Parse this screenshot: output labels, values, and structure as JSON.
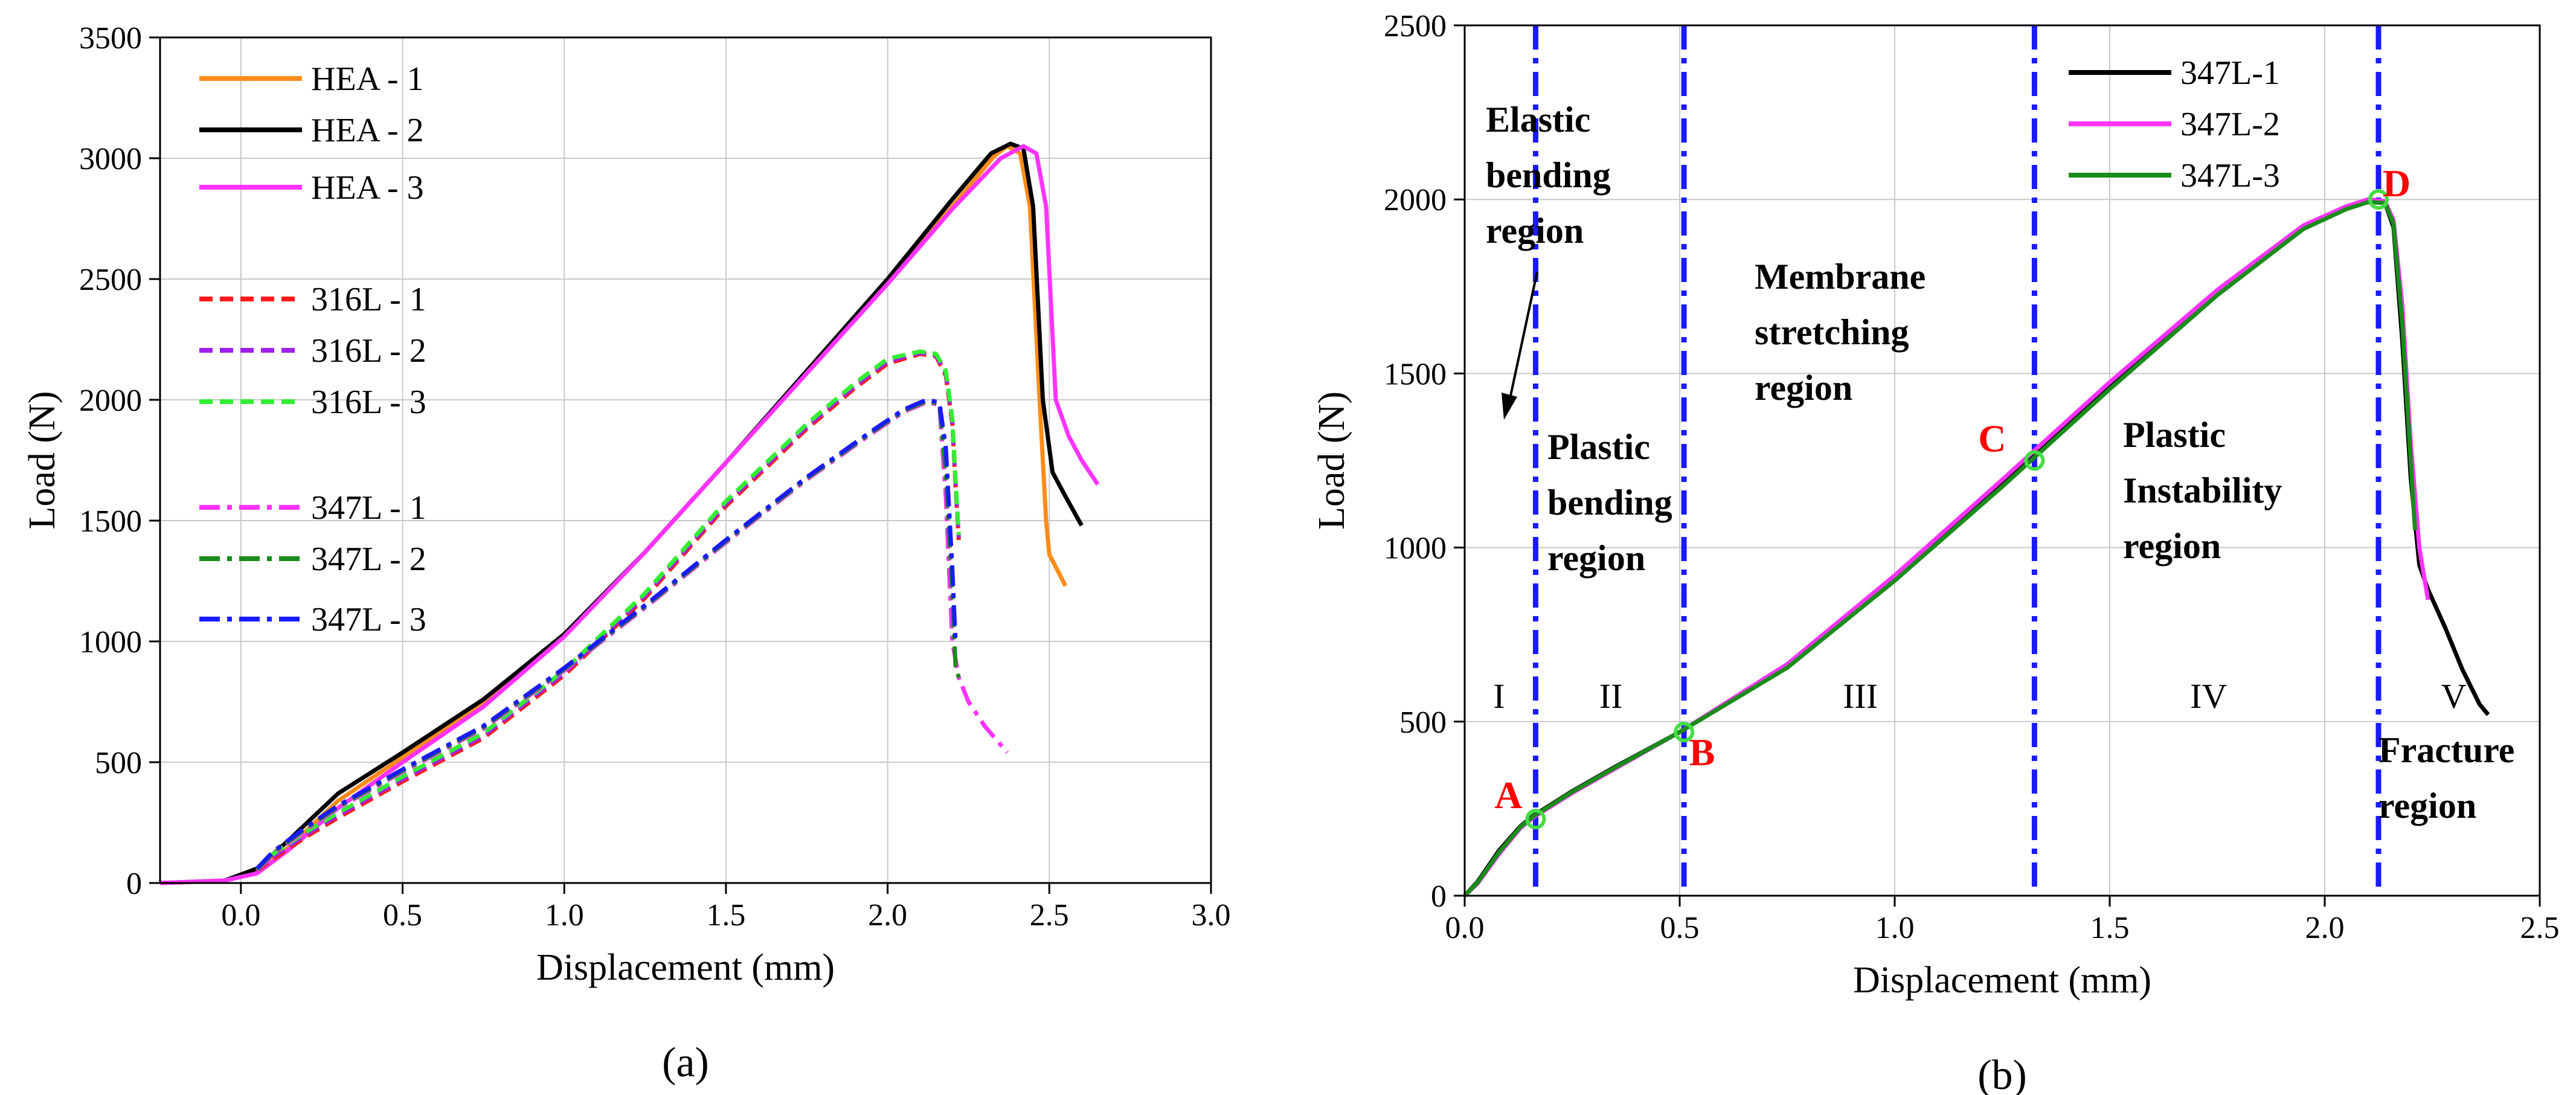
{
  "chart_data": [
    {
      "type": "line",
      "panel_label": "(a)",
      "xlabel": "Displacement (mm)",
      "ylabel": "Load (N)",
      "xlim": [
        -0.25,
        3.0
      ],
      "ylim": [
        0,
        3500
      ],
      "xticks": [
        0.0,
        0.5,
        1.0,
        1.5,
        2.0,
        2.5,
        3.0
      ],
      "xtick_labels": [
        "0.0",
        "0.5",
        "1.0",
        "1.5",
        "2.0",
        "2.5",
        "3.0"
      ],
      "yticks": [
        0,
        500,
        1000,
        1500,
        2000,
        2500,
        3000,
        3500
      ],
      "ytick_labels": [
        "0",
        "500",
        "1000",
        "1500",
        "2000",
        "2500",
        "3000",
        "3500"
      ],
      "grid": true,
      "legend_position": "top-left",
      "series": [
        {
          "name": "HEA - 1",
          "color": "#ff8c1a",
          "dash": "solid",
          "x": [
            -0.25,
            -0.05,
            0.05,
            0.15,
            0.3,
            0.5,
            0.75,
            1.0,
            1.25,
            1.5,
            1.75,
            2.0,
            2.2,
            2.33,
            2.37,
            2.41,
            2.44,
            2.47,
            2.49,
            2.5,
            2.55
          ],
          "y": [
            0,
            10,
            50,
            150,
            340,
            520,
            740,
            1020,
            1370,
            1740,
            2110,
            2490,
            2800,
            3010,
            3050,
            3020,
            2800,
            2000,
            1500,
            1360,
            1230
          ]
        },
        {
          "name": "HEA - 2",
          "color": "#000000",
          "dash": "solid",
          "x": [
            -0.25,
            -0.05,
            0.05,
            0.15,
            0.3,
            0.5,
            0.75,
            1.0,
            1.25,
            1.5,
            1.75,
            2.0,
            2.2,
            2.32,
            2.38,
            2.42,
            2.45,
            2.48,
            2.51,
            2.55,
            2.6
          ],
          "y": [
            0,
            10,
            60,
            180,
            370,
            540,
            760,
            1030,
            1370,
            1740,
            2120,
            2500,
            2830,
            3020,
            3060,
            3040,
            2800,
            2000,
            1700,
            1600,
            1480
          ]
        },
        {
          "name": "HEA - 3",
          "color": "#ff33ff",
          "dash": "solid",
          "x": [
            -0.25,
            -0.05,
            0.05,
            0.15,
            0.3,
            0.5,
            0.75,
            1.0,
            1.25,
            1.5,
            1.75,
            2.0,
            2.2,
            2.35,
            2.42,
            2.46,
            2.49,
            2.52,
            2.56,
            2.6,
            2.65
          ],
          "y": [
            0,
            10,
            40,
            140,
            310,
            500,
            730,
            1020,
            1370,
            1740,
            2110,
            2480,
            2790,
            3000,
            3050,
            3020,
            2800,
            2000,
            1850,
            1750,
            1650
          ]
        },
        {
          "name": "316L - 1",
          "color": "#ff1a1a",
          "dash": "dashed",
          "x": [
            0.05,
            0.1,
            0.2,
            0.3,
            0.5,
            0.75,
            1.0,
            1.25,
            1.5,
            1.75,
            1.9,
            2.0,
            2.1,
            2.15,
            2.18,
            2.2,
            2.21,
            2.22
          ],
          "y": [
            50,
            100,
            190,
            270,
            420,
            600,
            860,
            1180,
            1560,
            1880,
            2050,
            2150,
            2190,
            2180,
            2100,
            1900,
            1650,
            1420
          ]
        },
        {
          "name": "316L - 2",
          "color": "#a020f0",
          "dash": "dashed",
          "x": [
            0.05,
            0.1,
            0.2,
            0.3,
            0.5,
            0.75,
            1.0,
            1.25,
            1.5,
            1.75,
            1.9,
            2.0,
            2.1,
            2.15,
            2.18,
            2.2,
            2.21,
            2.22
          ],
          "y": [
            55,
            110,
            200,
            280,
            430,
            610,
            870,
            1190,
            1570,
            1890,
            2060,
            2160,
            2195,
            2185,
            2110,
            1910,
            1660,
            1430
          ]
        },
        {
          "name": "316L - 3",
          "color": "#33ee33",
          "dash": "dashed",
          "x": [
            0.05,
            0.1,
            0.2,
            0.3,
            0.5,
            0.75,
            1.0,
            1.25,
            1.5,
            1.75,
            1.9,
            2.0,
            2.1,
            2.15,
            2.18,
            2.2,
            2.21,
            2.22
          ],
          "y": [
            60,
            120,
            210,
            290,
            440,
            620,
            880,
            1200,
            1580,
            1900,
            2070,
            2170,
            2200,
            2190,
            2120,
            1920,
            1670,
            1440
          ]
        },
        {
          "name": "347L - 1",
          "color": "#ff33ff",
          "dash": "dashdot",
          "x": [
            0.05,
            0.1,
            0.2,
            0.3,
            0.5,
            0.75,
            1.0,
            1.25,
            1.5,
            1.75,
            1.95,
            2.05,
            2.12,
            2.16,
            2.18,
            2.2,
            2.22,
            2.25,
            2.3,
            2.37
          ],
          "y": [
            50,
            120,
            220,
            310,
            460,
            640,
            880,
            1140,
            1410,
            1670,
            1860,
            1950,
            1990,
            1980,
            1600,
            1000,
            850,
            750,
            650,
            540
          ]
        },
        {
          "name": "347L - 2",
          "color": "#1a8c1a",
          "dash": "dashdot",
          "x": [
            0.05,
            0.1,
            0.2,
            0.3,
            0.5,
            0.75,
            1.0,
            1.25,
            1.5,
            1.75,
            1.95,
            2.05,
            2.12,
            2.16,
            2.18,
            2.2,
            2.21,
            2.22
          ],
          "y": [
            55,
            125,
            225,
            315,
            465,
            645,
            885,
            1145,
            1415,
            1675,
            1865,
            1955,
            1995,
            1985,
            1700,
            1200,
            900,
            850
          ]
        },
        {
          "name": "347L - 3",
          "color": "#1a1aff",
          "dash": "dashdot",
          "x": [
            0.05,
            0.1,
            0.2,
            0.3,
            0.5,
            0.75,
            1.0,
            1.25,
            1.5,
            1.75,
            1.95,
            2.05,
            2.12,
            2.16,
            2.18,
            2.2,
            2.21
          ],
          "y": [
            60,
            130,
            230,
            320,
            470,
            650,
            890,
            1150,
            1420,
            1680,
            1870,
            1960,
            2000,
            1990,
            1800,
            1300,
            1000
          ]
        }
      ]
    },
    {
      "type": "line",
      "panel_label": "(b)",
      "xlabel": "Displacement (mm)",
      "ylabel": "Load (N)",
      "xlim": [
        0,
        2.5
      ],
      "ylim": [
        0,
        2500
      ],
      "xticks": [
        0.0,
        0.5,
        1.0,
        1.5,
        2.0,
        2.5
      ],
      "xtick_labels": [
        "0.0",
        "0.5",
        "1.0",
        "1.5",
        "2.0",
        "2.5"
      ],
      "yticks": [
        0,
        500,
        1000,
        1500,
        2000,
        2500
      ],
      "ytick_labels": [
        "0",
        "500",
        "1000",
        "1500",
        "2000",
        "2500"
      ],
      "grid": true,
      "legend_position": "top-center",
      "series": [
        {
          "name": "347L-1",
          "color": "#000000",
          "dash": "solid",
          "x": [
            0,
            0.03,
            0.08,
            0.13,
            0.16,
            0.25,
            0.35,
            0.5,
            0.75,
            1.0,
            1.25,
            1.5,
            1.75,
            1.95,
            2.05,
            2.1,
            2.14,
            2.16,
            2.18,
            2.2,
            2.22,
            2.24,
            2.28,
            2.32,
            2.36,
            2.38
          ],
          "y": [
            0,
            40,
            130,
            200,
            230,
            300,
            370,
            470,
            660,
            910,
            1180,
            1460,
            1730,
            1920,
            1975,
            1995,
            1990,
            1920,
            1600,
            1200,
            950,
            880,
            770,
            650,
            550,
            520
          ]
        },
        {
          "name": "347L-2",
          "color": "#ff33ff",
          "dash": "solid",
          "x": [
            0,
            0.03,
            0.08,
            0.13,
            0.16,
            0.25,
            0.35,
            0.5,
            0.75,
            1.0,
            1.25,
            1.5,
            1.75,
            1.95,
            2.05,
            2.1,
            2.14,
            2.16,
            2.18,
            2.2,
            2.22,
            2.24
          ],
          "y": [
            0,
            35,
            120,
            195,
            225,
            295,
            365,
            470,
            665,
            920,
            1195,
            1475,
            1740,
            1925,
            1980,
            2000,
            1995,
            1940,
            1700,
            1300,
            1000,
            850
          ]
        },
        {
          "name": "347L-3",
          "color": "#1a8c1a",
          "dash": "solid",
          "x": [
            0,
            0.03,
            0.08,
            0.13,
            0.16,
            0.25,
            0.35,
            0.5,
            0.75,
            1.0,
            1.25,
            1.5,
            1.75,
            1.95,
            2.05,
            2.1,
            2.14,
            2.16,
            2.18,
            2.2,
            2.21
          ],
          "y": [
            0,
            38,
            125,
            198,
            228,
            298,
            368,
            470,
            655,
            905,
            1175,
            1455,
            1725,
            1915,
            1972,
            1992,
            1990,
            1930,
            1650,
            1250,
            1050
          ]
        }
      ],
      "vlines": [
        0.165,
        0.51,
        1.325,
        2.125
      ],
      "vline_color": "#1a1aff",
      "points": [
        {
          "label": "A",
          "x": 0.165,
          "y": 220
        },
        {
          "label": "B",
          "x": 0.51,
          "y": 470
        },
        {
          "label": "C",
          "x": 1.325,
          "y": 1250
        },
        {
          "label": "D",
          "x": 2.125,
          "y": 2000
        }
      ],
      "region_numerals": [
        {
          "label": "I",
          "x": 0.08
        },
        {
          "label": "II",
          "x": 0.34
        },
        {
          "label": "III",
          "x": 0.92
        },
        {
          "label": "IV",
          "x": 1.73
        },
        {
          "label": "V",
          "x": 2.3
        }
      ],
      "region_labels": [
        {
          "lines": [
            "Elastic",
            "bending",
            "region"
          ]
        },
        {
          "lines": [
            "Plastic",
            "bending",
            "region"
          ]
        },
        {
          "lines": [
            "Membrane",
            "stretching",
            "region"
          ]
        },
        {
          "lines": [
            "Plastic",
            "Instability",
            "region"
          ]
        },
        {
          "lines": [
            "Fracture",
            "region"
          ]
        }
      ],
      "highlight_color": "#ff0000",
      "marker_color": "#44dd44"
    }
  ]
}
